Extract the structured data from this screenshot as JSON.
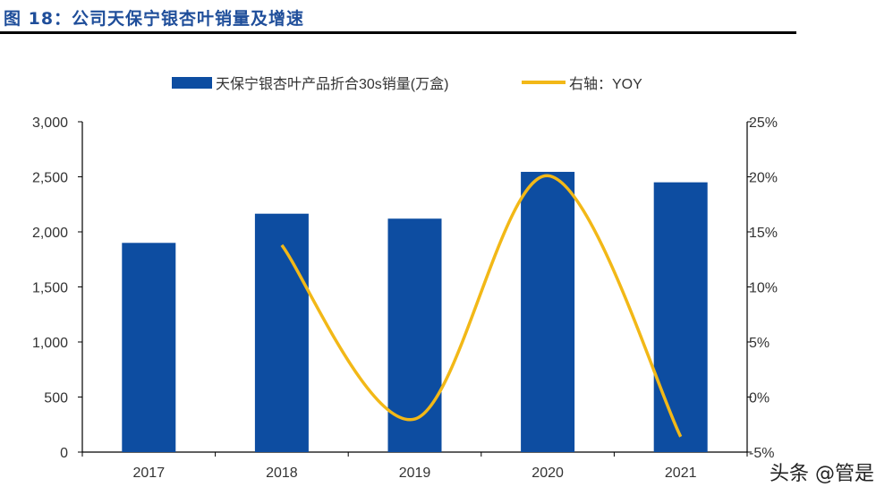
{
  "figure_title": "图 18：公司天保宁银杏叶销量及增速",
  "watermark": "头条 @管是",
  "chart_data": {
    "type": "bar+line",
    "title": "",
    "categories": [
      "2017",
      "2018",
      "2019",
      "2020",
      "2021"
    ],
    "series": [
      {
        "name": "天保宁银杏叶产品折合30s销量(万盒)",
        "type": "bar",
        "axis": "left",
        "color": "#0d4da1",
        "values": [
          1900,
          2165,
          2120,
          2545,
          2450
        ]
      },
      {
        "name": "右轴：YOY",
        "type": "line",
        "axis": "right",
        "color": "#f2b817",
        "smooth": true,
        "values": [
          null,
          13.8,
          -2.0,
          20.1,
          -3.6
        ]
      }
    ],
    "y_left": {
      "range": [
        0,
        3000
      ],
      "ticks": [
        "0",
        "500",
        "1,000",
        "1,500",
        "2,000",
        "2,500",
        "3,000"
      ]
    },
    "y_right": {
      "range": [
        -5,
        25
      ],
      "ticks": [
        "-5%",
        "0%",
        "5%",
        "10%",
        "15%",
        "20%",
        "25%"
      ],
      "unit": "%"
    },
    "legend_placement": "top",
    "grid": false
  }
}
